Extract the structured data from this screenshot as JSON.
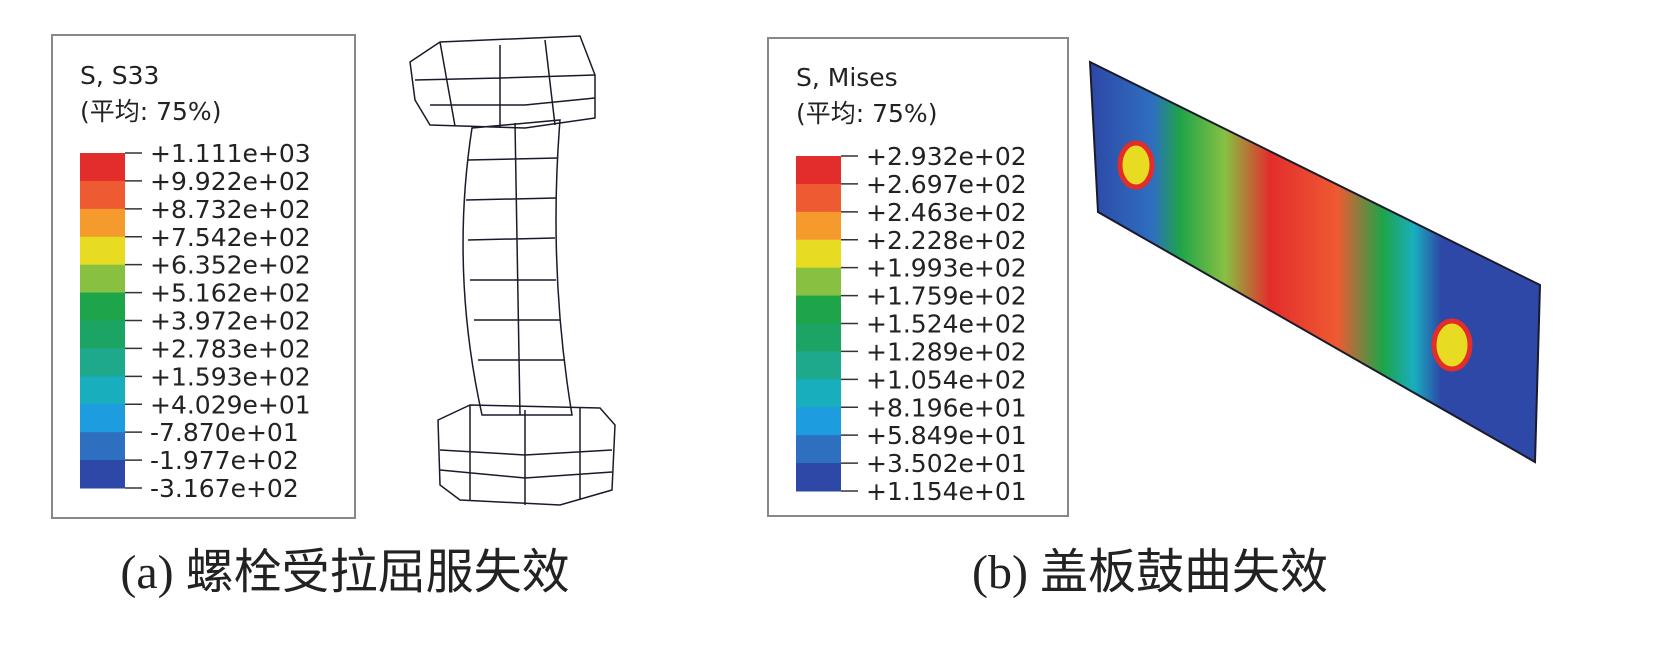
{
  "panels": [
    {
      "legend": {
        "title": "S, S33",
        "subtitle": "(平均: 75%)",
        "labels": [
          "+1.111e+03",
          "+9.922e+02",
          "+8.732e+02",
          "+7.542e+02",
          "+6.352e+02",
          "+5.162e+02",
          "+3.972e+02",
          "+2.783e+02",
          "+1.593e+02",
          "+4.029e+01",
          "-7.870e+01",
          "-1.977e+02",
          "-3.167e+02"
        ],
        "colors": [
          "#e32d2b",
          "#ee5a32",
          "#f59a2c",
          "#e8dc23",
          "#88c042",
          "#1ea449",
          "#1ba463",
          "#1fa98c",
          "#19aebe",
          "#1d9ce0",
          "#2e6fc0",
          "#2d48a6"
        ]
      },
      "caption": "(a) 螺栓受拉屈服失效"
    },
    {
      "legend": {
        "title": "S, Mises",
        "subtitle": "(平均: 75%)",
        "labels": [
          "+2.932e+02",
          "+2.697e+02",
          "+2.463e+02",
          "+2.228e+02",
          "+1.993e+02",
          "+1.759e+02",
          "+1.524e+02",
          "+1.289e+02",
          "+1.054e+02",
          "+8.196e+01",
          "+5.849e+01",
          "+3.502e+01",
          "+1.154e+01"
        ],
        "colors": [
          "#e32d2b",
          "#ee5a32",
          "#f59a2c",
          "#e8dc23",
          "#88c042",
          "#1ea449",
          "#1ba463",
          "#1fa98c",
          "#19aebe",
          "#1d9ce0",
          "#2e6fc0",
          "#2d48a6"
        ]
      },
      "caption": "(b) 盖板鼓曲失效"
    }
  ]
}
